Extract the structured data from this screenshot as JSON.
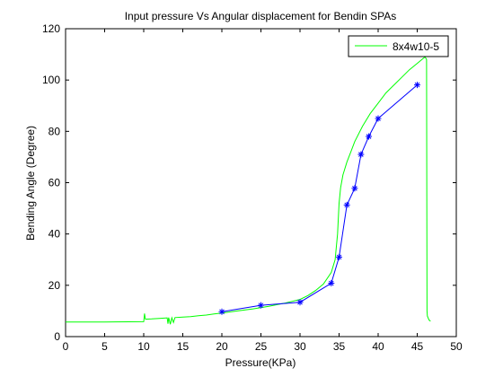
{
  "chart_data": {
    "type": "line",
    "title": "Input pressure Vs Angular displacement for Bendin SPAs",
    "xlabel": "Pressure(KPa)",
    "ylabel": "Bending Angle (Degree)",
    "xlim": [
      0,
      50
    ],
    "ylim": [
      0,
      120
    ],
    "xticks": [
      0,
      5,
      10,
      15,
      20,
      25,
      30,
      35,
      40,
      45,
      50
    ],
    "yticks": [
      0,
      20,
      40,
      60,
      80,
      100,
      120
    ],
    "grid": false,
    "legend_position": "top-right",
    "series": [
      {
        "name": "8x4w10-5",
        "color": "#00ff00",
        "marker": "none",
        "x": [
          0,
          5,
          10,
          10.1,
          10.2,
          10.25,
          11,
          12,
          13,
          13.1,
          13.2,
          13.4,
          13.6,
          13.8,
          14,
          15,
          16,
          17,
          18,
          19,
          20,
          22,
          24,
          26,
          28,
          30,
          31,
          32,
          33,
          34,
          34.5,
          34.8,
          35,
          35.2,
          35.5,
          36,
          36.5,
          37,
          38,
          39,
          40,
          41,
          42,
          43,
          44,
          45,
          46,
          46.2,
          46.25,
          46.3,
          46.5,
          46.7
        ],
        "y": [
          5.7,
          5.7,
          5.8,
          9,
          7,
          6.8,
          6.9,
          7.1,
          7.3,
          5,
          7.4,
          4.8,
          7.3,
          5.5,
          7.4,
          7.6,
          7.8,
          8.1,
          8.4,
          8.8,
          9.2,
          10,
          10.8,
          11.8,
          13,
          14.5,
          16,
          18,
          20.5,
          25,
          30,
          40,
          52,
          58,
          63,
          68,
          72,
          76,
          82,
          87,
          91,
          95,
          98,
          101,
          104,
          106.5,
          109,
          108,
          10,
          8,
          6.5,
          6
        ]
      },
      {
        "name": "",
        "color": "#0000ff",
        "marker": "*",
        "x": [
          20,
          25,
          30,
          34,
          35,
          36,
          37,
          37.8,
          38.8,
          40,
          45
        ],
        "y": [
          9.7,
          12.2,
          13.4,
          20.8,
          31,
          51.3,
          57.8,
          71,
          78,
          85,
          98.1
        ]
      }
    ]
  }
}
